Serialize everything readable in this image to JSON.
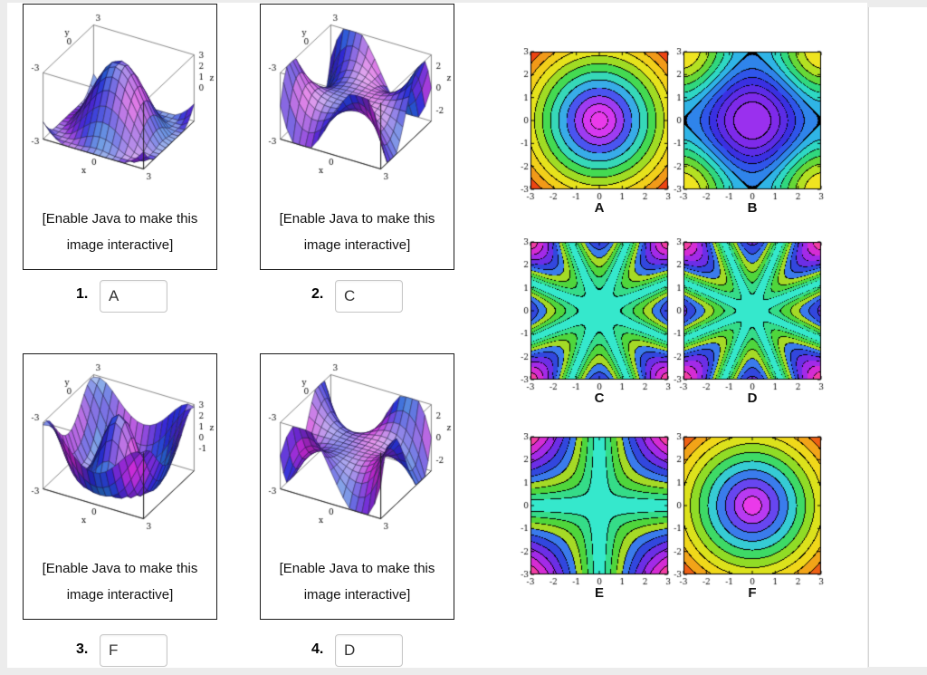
{
  "page": {
    "outer_bg": "#ececec",
    "content_bg": "#ffffff",
    "panel_border": "#1a1a1a",
    "answer_border": "#c6c6c6"
  },
  "captions": {
    "line1": "[Enable Java to make this",
    "line2": "image interactive]"
  },
  "problems": [
    {
      "number": "1.",
      "answer": "A"
    },
    {
      "number": "2.",
      "answer": "C"
    },
    {
      "number": "3.",
      "answer": "F"
    },
    {
      "number": "4.",
      "answer": "D"
    }
  ],
  "surfaces": [
    {
      "fn": "radial1",
      "z_ticks": [
        "3",
        "2",
        "1",
        "0"
      ]
    },
    {
      "fn": "twist1",
      "z_ticks": [
        "2",
        "0",
        "-2"
      ]
    },
    {
      "fn": "radial2",
      "z_ticks": [
        "3",
        "2",
        "1",
        "0",
        "-1"
      ]
    },
    {
      "fn": "twist2",
      "z_ticks": [
        "2",
        "0",
        "-2"
      ]
    }
  ],
  "surface_axis": {
    "x_label": "x",
    "y_label": "y",
    "z_label": "z",
    "x_ticks": [
      "-3",
      "0",
      "3"
    ],
    "y_ticks": [
      "-3",
      "0",
      "3"
    ]
  },
  "contour_axis": {
    "x_ticks": [
      "-3",
      "-2",
      "-1",
      "0",
      "1",
      "2",
      "3"
    ],
    "y_ticks": [
      "3",
      "2",
      "1",
      "0",
      "-1",
      "-2",
      "-3"
    ]
  },
  "contour_plots": [
    {
      "label": "A",
      "fn": "bowl",
      "palette": "bowl"
    },
    {
      "label": "B",
      "fn": "coscos",
      "palette": "coscos"
    },
    {
      "label": "C",
      "fn": "star8",
      "palette": "star"
    },
    {
      "label": "D",
      "fn": "star8b",
      "palette": "star"
    },
    {
      "label": "E",
      "fn": "cross4",
      "palette": "star"
    },
    {
      "label": "F",
      "fn": "bowl2",
      "palette": "bowl2"
    }
  ],
  "palettes": {
    "bowl": [
      "#ea3aea",
      "#d638f0",
      "#9e3cf2",
      "#4a55f0",
      "#38ace8",
      "#36d8b8",
      "#44da52",
      "#a0dc24",
      "#e6e31c",
      "#f2d01a",
      "#f29a18",
      "#ee4512"
    ],
    "bowl2": [
      "#ea3aea",
      "#b83af2",
      "#6746f0",
      "#3a7cec",
      "#36ccd4",
      "#3eda66",
      "#90dc26",
      "#dce21c",
      "#f0d81a",
      "#f2a418",
      "#ee6014"
    ],
    "coscos": [
      "#efe420",
      "#b4e122",
      "#66d837",
      "#30d87e",
      "#2ed8c4",
      "#2fb4e6",
      "#2f84ea",
      "#2f55ea",
      "#3a30e2",
      "#5c2ce6",
      "#7e2aea",
      "#9a30ee"
    ],
    "star": [
      "#35e8cc",
      "#35dc88",
      "#4fd63c",
      "#a5da26",
      "#3a7bec",
      "#3247de",
      "#6c2ee6",
      "#a32ae8",
      "#d52cd4",
      "#f23ea4"
    ]
  },
  "chart_data": [
    {
      "id": "surface-1",
      "type": "surface",
      "x_range": [
        -3,
        3
      ],
      "y_range": [
        -3,
        3
      ],
      "z_ticks": [
        3,
        2,
        1,
        0
      ],
      "answer": "A",
      "description": "3D wireframe surface: central bump, circular valley, rising corners (matches circular contour A)"
    },
    {
      "id": "surface-2",
      "type": "surface",
      "x_range": [
        -3,
        3
      ],
      "y_range": [
        -3,
        3
      ],
      "z_ticks": [
        2,
        0,
        -2
      ],
      "answer": "C",
      "description": "3D wireframe twisted saddle with alternating raised/lowered lobes (matches star contour C)"
    },
    {
      "id": "surface-3",
      "type": "surface",
      "x_range": [
        -3,
        3
      ],
      "y_range": [
        -3,
        3
      ],
      "z_ticks": [
        3,
        2,
        1,
        0,
        -1
      ],
      "answer": "F",
      "description": "3D wireframe radial ripple surface (matches circular contour F)"
    },
    {
      "id": "surface-4",
      "type": "surface",
      "x_range": [
        -3,
        3
      ],
      "y_range": [
        -3,
        3
      ],
      "z_ticks": [
        2,
        0,
        -2
      ],
      "answer": "D",
      "description": "3D wireframe twisted saddle, mirror of surface 2 (matches star contour D)"
    },
    {
      "id": "contour-A",
      "type": "contour",
      "x_range": [
        -3,
        3
      ],
      "y_range": [
        -3,
        3
      ],
      "pattern": "concentric circular bands: magenta center, blue-cyan-green rings, yellow field, red blobs at corners"
    },
    {
      "id": "contour-B",
      "type": "contour",
      "x_range": [
        -3,
        3
      ],
      "y_range": [
        -3,
        3
      ],
      "pattern": "concentric diamond bands: violet-blue center, cyan/green ripples with yellow tips at corners"
    },
    {
      "id": "contour-C",
      "type": "contour",
      "x_range": [
        -3,
        3
      ],
      "y_range": [
        -3,
        3
      ],
      "pattern": "eight-pointed star: cyan center, green arms, blue shells, magenta-pink at corners"
    },
    {
      "id": "contour-D",
      "type": "contour",
      "x_range": [
        -3,
        3
      ],
      "y_range": [
        -3,
        3
      ],
      "pattern": "eight-pointed star, nearly identical to C"
    },
    {
      "id": "contour-E",
      "type": "contour",
      "x_range": [
        -3,
        3
      ],
      "y_range": [
        -3,
        3
      ],
      "pattern": "four-pointed star: cyan cross along axes, blue and magenta toward corners"
    },
    {
      "id": "contour-F",
      "type": "contour",
      "x_range": [
        -3,
        3
      ],
      "y_range": [
        -3,
        3
      ],
      "pattern": "concentric circular bands: magenta center, yellow field, orange bands at corners"
    }
  ]
}
